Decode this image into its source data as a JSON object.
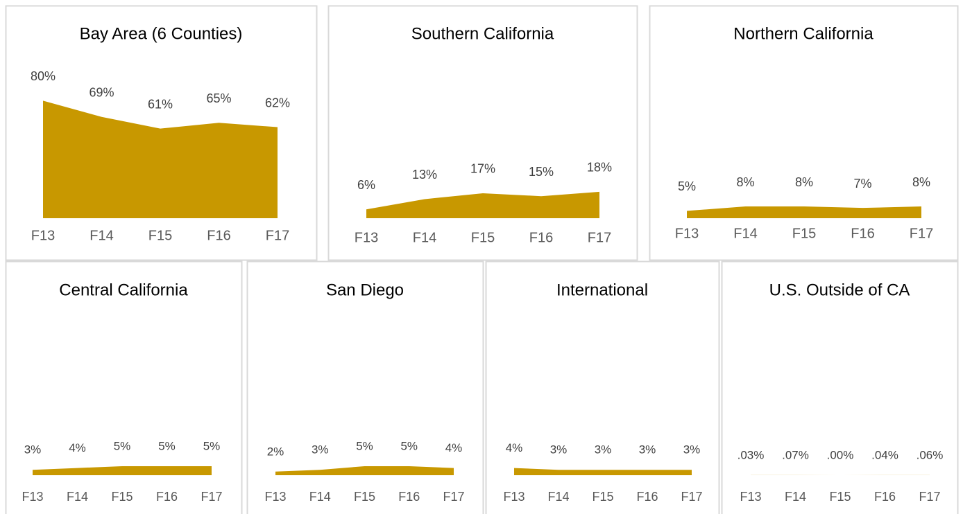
{
  "chart_data": [
    {
      "type": "area",
      "title": "Bay Area (6 Counties)",
      "categories": [
        "F13",
        "F14",
        "F15",
        "F16",
        "F17"
      ],
      "values": [
        80,
        69,
        61,
        65,
        62
      ],
      "value_labels": [
        "80%",
        "69%",
        "61%",
        "65%",
        "62%"
      ],
      "color": "#c89800",
      "ylim": [
        0,
        100
      ]
    },
    {
      "type": "area",
      "title": "Southern California",
      "categories": [
        "F13",
        "F14",
        "F15",
        "F16",
        "F17"
      ],
      "values": [
        6,
        13,
        17,
        15,
        18
      ],
      "value_labels": [
        "6%",
        "13%",
        "17%",
        "15%",
        "18%"
      ],
      "color": "#c89800",
      "ylim": [
        0,
        100
      ]
    },
    {
      "type": "area",
      "title": "Northern California",
      "categories": [
        "F13",
        "F14",
        "F15",
        "F16",
        "F17"
      ],
      "values": [
        5,
        8,
        8,
        7,
        8
      ],
      "value_labels": [
        "5%",
        "8%",
        "8%",
        "7%",
        "8%"
      ],
      "color": "#c89800",
      "ylim": [
        0,
        100
      ]
    },
    {
      "type": "area",
      "title": "Central California",
      "categories": [
        "F13",
        "F14",
        "F15",
        "F16",
        "F17"
      ],
      "values": [
        3,
        4,
        5,
        5,
        5
      ],
      "value_labels": [
        "3%",
        "4%",
        "5%",
        "5%",
        "5%"
      ],
      "color": "#c89800",
      "ylim": [
        0,
        100
      ]
    },
    {
      "type": "area",
      "title": "San Diego",
      "categories": [
        "F13",
        "F14",
        "F15",
        "F16",
        "F17"
      ],
      "values": [
        2,
        3,
        5,
        5,
        4
      ],
      "value_labels": [
        "2%",
        "3%",
        "5%",
        "5%",
        "4%"
      ],
      "color": "#c89800",
      "ylim": [
        0,
        100
      ]
    },
    {
      "type": "area",
      "title": "International",
      "categories": [
        "F13",
        "F14",
        "F15",
        "F16",
        "F17"
      ],
      "values": [
        4,
        3,
        3,
        3,
        3
      ],
      "value_labels": [
        "4%",
        "3%",
        "3%",
        "3%",
        "3%"
      ],
      "color": "#c89800",
      "ylim": [
        0,
        100
      ]
    },
    {
      "type": "area",
      "title": "U.S. Outside of CA",
      "categories": [
        "F13",
        "F14",
        "F15",
        "F16",
        "F17"
      ],
      "values": [
        0.03,
        0.07,
        0.0,
        0.04,
        0.06
      ],
      "value_labels": [
        ".03%",
        ".07%",
        ".00%",
        ".04%",
        ".06%"
      ],
      "color": "#c89800",
      "ylim": [
        0,
        100
      ]
    }
  ]
}
